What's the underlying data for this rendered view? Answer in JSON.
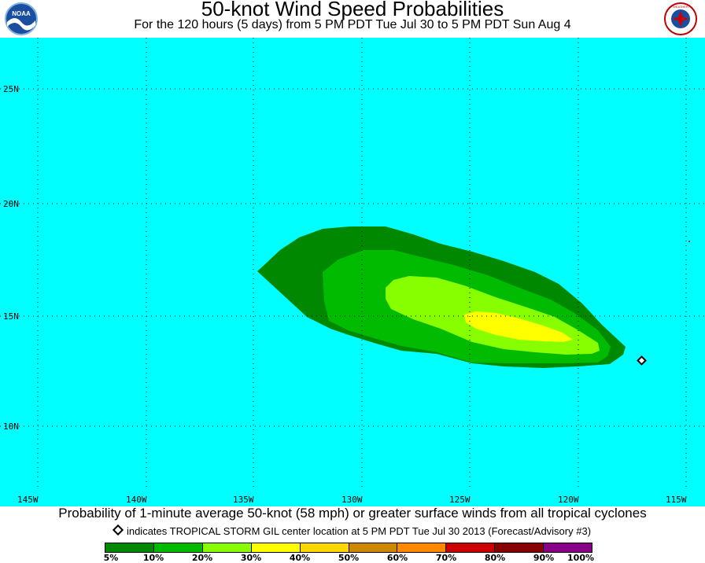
{
  "header": {
    "title": "50-knot Wind Speed Probabilities",
    "subtitle": "For the 120 hours (5 days) from 5 PM PDT Tue Jul 30 to 5 PM PDT Sun Aug 4",
    "logo_left": "NOAA",
    "logo_right": "NATIONAL WEATHER SERVICE"
  },
  "map": {
    "ocean_color": "#00ffff",
    "lat_labels": [
      "25N",
      "20N",
      "15N",
      "10N"
    ],
    "lon_labels": [
      "145W",
      "140W",
      "135W",
      "130W",
      "125W",
      "120W",
      "115W"
    ],
    "storm_name": "TROPICAL STORM GIL",
    "storm_center": {
      "lat": 12.9,
      "lon": -116.9
    }
  },
  "caption": "Probability of 1-minute average 50-knot (58 mph) or greater surface winds from all tropical cyclones",
  "legend": {
    "note": "indicates TROPICAL STORM GIL center location at 5 PM PDT Tue Jul 30 2013 (Forecast/Advisory #3)",
    "colors": [
      "#008800",
      "#00bb00",
      "#88ff00",
      "#ffff00",
      "#ffd700",
      "#cc8800",
      "#ff8800",
      "#cc0000",
      "#880000",
      "#880088"
    ],
    "labels": [
      "5%",
      "10%",
      "20%",
      "30%",
      "40%",
      "50%",
      "60%",
      "70%",
      "80%",
      "90%",
      "100%"
    ]
  }
}
